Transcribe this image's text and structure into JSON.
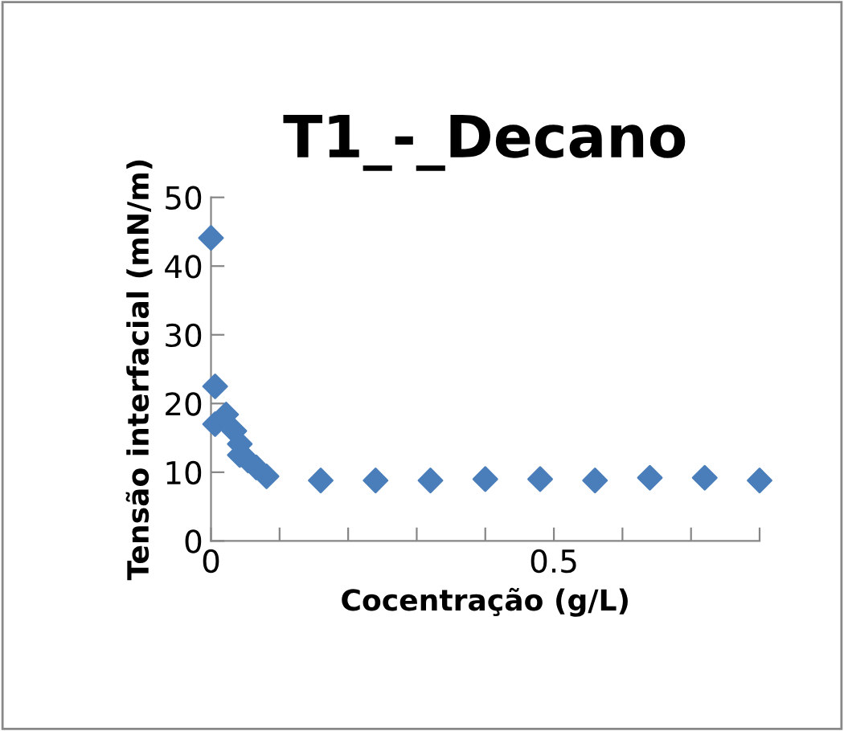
{
  "chart_data": {
    "type": "scatter",
    "title": "T1_-_Decano",
    "xlabel": "Cocentração (g/L)",
    "ylabel": "Tensão interfacial (mN/m)",
    "x": [
      0,
      0.006,
      0.022,
      0.006,
      0.034,
      0.042,
      0.042,
      0.054,
      0.066,
      0.081,
      0.16,
      0.24,
      0.32,
      0.4,
      0.48,
      0.56,
      0.64,
      0.72,
      0.8
    ],
    "series": [
      {
        "color": "#4a7ebb",
        "values": [
          44.1,
          22.5,
          18.4,
          17.0,
          16.0,
          14.1,
          12.5,
          11.7,
          10.7,
          9.4,
          8.8,
          8.8,
          8.8,
          9.0,
          9.0,
          8.8,
          9.2,
          9.2,
          8.8
        ]
      }
    ],
    "marker": "diamond",
    "grid": false,
    "legend": false,
    "xlim": [
      0,
      0.8
    ],
    "xticks": [
      0,
      {
        "value": 0.1,
        "label": null
      },
      {
        "value": 0.2,
        "label": null
      },
      {
        "value": 0.3,
        "label": null
      },
      {
        "value": 0.4,
        "label": null
      },
      0.5,
      {
        "value": 0.6,
        "label": null
      },
      {
        "value": 0.7,
        "label": null
      },
      {
        "value": 0.8,
        "label": null
      }
    ],
    "ylim": [
      0,
      50
    ],
    "yticks": [
      0,
      10,
      20,
      30,
      40,
      50
    ]
  }
}
